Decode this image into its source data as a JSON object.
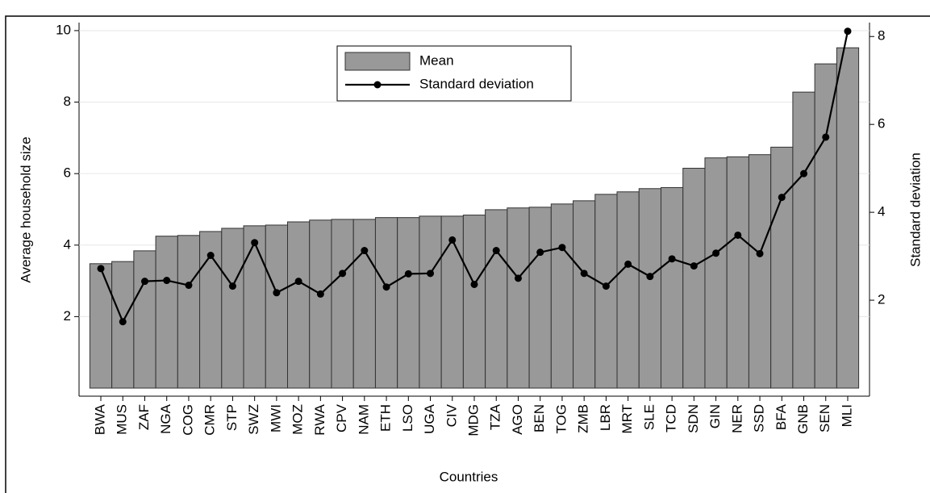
{
  "chart_data": {
    "type": "bar",
    "x_label": "Countries",
    "y_label": "Average household size",
    "y2_label": "Standard deviation",
    "categories": [
      "BWA",
      "MUS",
      "ZAF",
      "NGA",
      "COG",
      "CMR",
      "STP",
      "SWZ",
      "MWI",
      "MOZ",
      "RWA",
      "CPV",
      "NAM",
      "ETH",
      "LSO",
      "UGA",
      "CIV",
      "MDG",
      "TZA",
      "AGO",
      "BEN",
      "TOG",
      "ZMB",
      "LBR",
      "MRT",
      "SLE",
      "TCD",
      "SDN",
      "GIN",
      "NER",
      "SSD",
      "BFA",
      "GNB",
      "SEN",
      "MLI"
    ],
    "series": [
      {
        "name": "Mean",
        "color": "#999999",
        "values": [
          3.48,
          3.54,
          3.84,
          4.25,
          4.27,
          4.38,
          4.47,
          4.54,
          4.56,
          4.65,
          4.7,
          4.72,
          4.72,
          4.77,
          4.77,
          4.81,
          4.81,
          4.84,
          4.99,
          5.04,
          5.06,
          5.15,
          5.24,
          5.42,
          5.49,
          5.58,
          5.61,
          6.15,
          6.44,
          6.47,
          6.53,
          6.74,
          8.28,
          9.07,
          9.52
        ]
      },
      {
        "name": "Standard deviation",
        "color": "#000000",
        "axis": "y2",
        "values": [
          2.72,
          1.51,
          2.43,
          2.45,
          2.34,
          3.02,
          2.32,
          3.31,
          2.17,
          2.43,
          2.14,
          2.61,
          3.13,
          2.3,
          2.6,
          2.61,
          3.37,
          2.36,
          3.13,
          2.5,
          3.09,
          3.2,
          2.61,
          2.32,
          2.82,
          2.54,
          2.94,
          2.78,
          3.07,
          3.48,
          3.06,
          4.34,
          4.88,
          5.71,
          8.12
        ]
      }
    ],
    "ylim": [
      0,
      10.45
    ],
    "yticks": [
      2,
      4,
      6,
      8,
      10
    ],
    "y2lim": [
      0,
      8.5
    ],
    "y2ticks": [
      2,
      4,
      6,
      8
    ],
    "grid": true
  }
}
